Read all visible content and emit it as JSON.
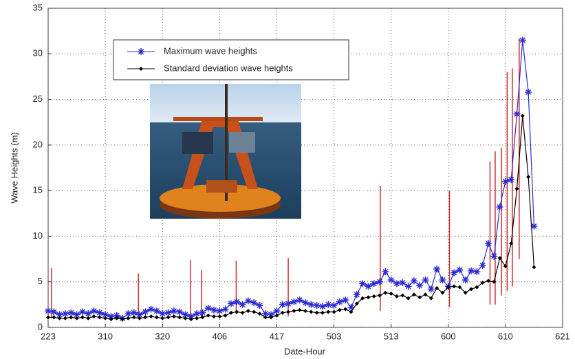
{
  "chart_data": {
    "type": "line",
    "xlabel": "Date-Hour",
    "ylabel": "Wave Heights  (m)",
    "xlim": [
      0,
      90
    ],
    "xticks": [
      {
        "value": 0,
        "label": "223"
      },
      {
        "value": 10,
        "label": "310"
      },
      {
        "value": 20,
        "label": "320"
      },
      {
        "value": 30,
        "label": "406"
      },
      {
        "value": 40,
        "label": "417"
      },
      {
        "value": 50,
        "label": "503"
      },
      {
        "value": 60,
        "label": "513"
      },
      {
        "value": 70,
        "label": "600"
      },
      {
        "value": 80,
        "label": "610"
      },
      {
        "value": 90,
        "label": "621"
      }
    ],
    "ylim": [
      0,
      35
    ],
    "yticks": [
      0,
      5,
      10,
      15,
      20,
      25,
      30,
      35
    ],
    "grid": true,
    "series": [
      {
        "name": "Maximum wave heights",
        "color": "#2b2bd6",
        "marker": "star",
        "values": [
          1.8,
          1.7,
          1.4,
          1.5,
          1.6,
          1.4,
          1.7,
          1.5,
          1.8,
          1.6,
          1.4,
          1.2,
          1.3,
          1.0,
          1.5,
          1.6,
          1.4,
          1.7,
          2.0,
          1.8,
          1.5,
          1.6,
          1.8,
          1.7,
          1.4,
          1.2,
          1.5,
          1.6,
          2.1,
          1.9,
          1.8,
          2.0,
          2.6,
          2.8,
          2.5,
          2.9,
          2.7,
          2.4,
          1.5,
          1.4,
          1.8,
          2.5,
          2.6,
          2.8,
          3.0,
          2.7,
          2.5,
          2.4,
          2.3,
          2.5,
          2.4,
          2.8,
          3.0,
          2.2,
          3.6,
          4.8,
          4.5,
          4.8,
          5.0,
          6.1,
          5.2,
          4.8,
          4.9,
          4.5,
          5.1,
          4.6,
          5.2,
          4.2,
          6.4,
          5.2,
          4.5,
          6.0,
          6.3,
          5.2,
          6.2,
          6.1,
          6.8,
          9.2,
          7.8,
          13.2,
          16.0,
          16.2,
          23.4,
          31.5,
          25.8,
          11.1
        ]
      },
      {
        "name": "Standard deviation wave heights",
        "color": "#000000",
        "marker": "dot",
        "values": [
          1.1,
          1.1,
          1.0,
          1.0,
          1.1,
          1.0,
          1.1,
          1.0,
          1.2,
          1.1,
          1.0,
          0.9,
          1.0,
          0.9,
          1.0,
          1.1,
          1.0,
          1.1,
          1.2,
          1.1,
          1.0,
          1.1,
          1.2,
          1.1,
          1.0,
          0.9,
          1.0,
          1.1,
          1.3,
          1.2,
          1.2,
          1.3,
          1.6,
          1.7,
          1.6,
          1.8,
          1.7,
          1.5,
          1.1,
          1.1,
          1.3,
          1.6,
          1.7,
          1.8,
          1.9,
          1.8,
          1.7,
          1.6,
          1.6,
          1.7,
          1.7,
          1.9,
          2.0,
          1.7,
          2.6,
          3.2,
          3.3,
          3.4,
          3.5,
          3.8,
          3.7,
          3.4,
          3.5,
          3.2,
          3.6,
          3.3,
          3.6,
          3.2,
          4.3,
          3.8,
          4.4,
          4.5,
          4.4,
          3.8,
          4.2,
          4.4,
          4.9,
          5.1,
          5.0,
          7.6,
          6.7,
          9.2,
          15.2,
          23.2,
          16.5,
          6.6
        ]
      }
    ],
    "ranges": {
      "color": "#cc2b2b",
      "x": [
        0.6,
        15.8,
        24.9,
        26.8,
        32.9,
        42,
        58.1,
        70.2,
        77.3,
        78.2,
        79.3,
        80.3,
        81.2,
        82.4
      ],
      "low": [
        1,
        1,
        1,
        1,
        1.5,
        1.2,
        1.8,
        2.2,
        2.5,
        2.5,
        3.5,
        4,
        4.5,
        7.5
      ],
      "high": [
        6.5,
        5.9,
        7.4,
        6.3,
        7.3,
        7.6,
        15.5,
        15,
        18.2,
        19.3,
        19.7,
        28,
        28.4,
        31.7
      ]
    }
  }
}
